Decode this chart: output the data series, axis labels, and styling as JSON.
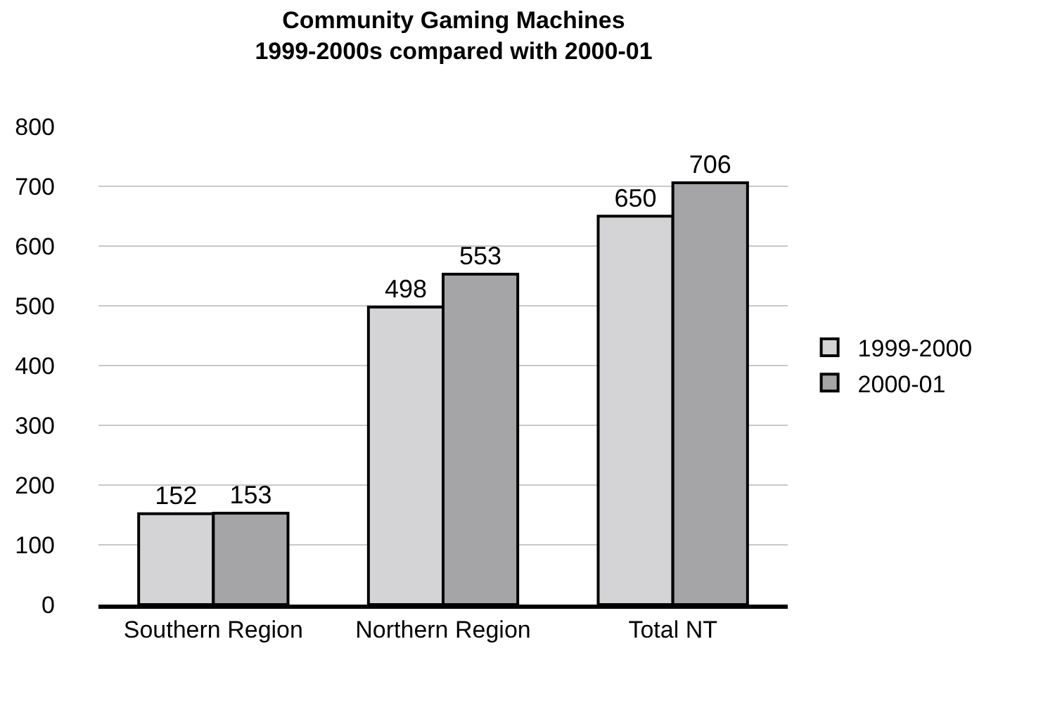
{
  "chart_data": {
    "type": "bar",
    "title": "Community Gaming Machines\n1999-2000s compared with 2000-01",
    "categories": [
      "Southern Region",
      "Northern Region",
      "Total NT"
    ],
    "series": [
      {
        "name": "1999-2000",
        "color": "#d4d4d6",
        "values": [
          152,
          498,
          650
        ]
      },
      {
        "name": "2000-01",
        "color": "#a5a5a8",
        "values": [
          153,
          553,
          706
        ]
      }
    ],
    "ylim": [
      0,
      800
    ],
    "yticks": [
      0,
      100,
      200,
      300,
      400,
      500,
      600,
      700,
      800
    ],
    "grid": "y",
    "legend": "right",
    "data_labels": true
  }
}
